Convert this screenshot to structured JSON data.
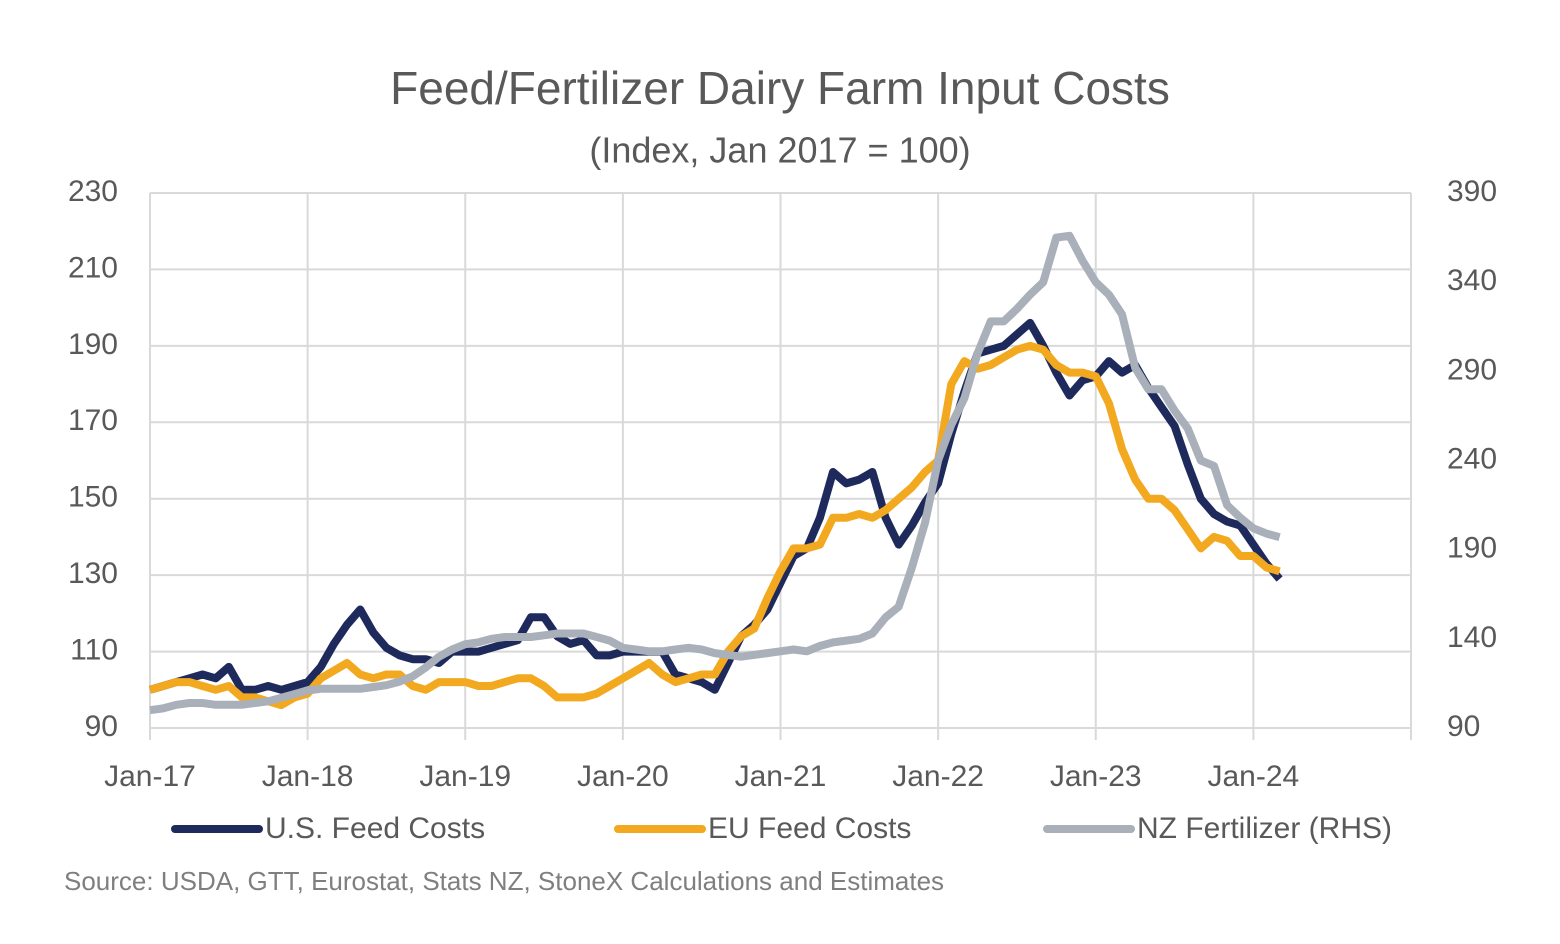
{
  "chart_data": {
    "type": "line",
    "title": "Feed/Fertilizer Dairy Farm Input Costs",
    "subtitle": "(Index, Jan 2017 = 100)",
    "source": "Source: USDA, GTT, Eurostat, Stats NZ, StoneX Calculations and Estimates",
    "categories": [
      "Jan-17",
      null,
      null,
      null,
      null,
      null,
      null,
      null,
      null,
      null,
      null,
      null,
      "Jan-18",
      null,
      null,
      null,
      null,
      null,
      null,
      null,
      null,
      null,
      null,
      null,
      "Jan-19",
      null,
      null,
      null,
      null,
      null,
      null,
      null,
      null,
      null,
      null,
      null,
      "Jan-20",
      null,
      null,
      null,
      null,
      null,
      null,
      null,
      null,
      null,
      null,
      null,
      "Jan-21",
      null,
      null,
      null,
      null,
      null,
      null,
      null,
      null,
      null,
      null,
      null,
      "Jan-22",
      null,
      null,
      null,
      null,
      null,
      null,
      null,
      null,
      null,
      null,
      null,
      "Jan-23",
      null,
      null,
      null,
      null,
      null,
      null,
      null,
      null,
      null,
      null,
      null,
      "Jan-24",
      null,
      null,
      null,
      null,
      null,
      null,
      null,
      null,
      null,
      null,
      null,
      null
    ],
    "ylim": [
      90,
      230
    ],
    "yticks": [
      90,
      110,
      130,
      150,
      170,
      190,
      210,
      230
    ],
    "y2lim": [
      90,
      390
    ],
    "y2ticks": [
      90,
      140,
      190,
      240,
      290,
      340,
      390
    ],
    "grid": true,
    "legend": "bottom",
    "series": [
      {
        "name": "U.S. Feed Costs",
        "color": "#1f2a5c",
        "values": [
          100,
          101,
          102,
          103,
          104,
          103,
          106,
          100,
          100,
          101,
          100,
          101,
          102,
          106,
          112,
          117,
          121,
          115,
          111,
          109,
          108,
          108,
          107,
          110,
          110,
          110,
          111,
          112,
          113,
          119,
          119,
          114,
          112,
          113,
          109,
          109,
          110,
          110,
          110,
          110,
          104,
          103,
          102,
          100,
          107,
          114,
          117,
          121,
          128,
          135,
          137,
          145,
          157,
          154,
          155,
          157,
          145,
          138,
          143,
          149,
          154,
          167,
          178,
          188,
          189,
          190,
          193,
          196,
          190,
          183,
          177,
          181,
          182,
          186,
          183,
          185,
          179,
          174,
          169,
          159,
          150,
          146,
          144,
          143,
          138,
          133,
          129,
          null,
          null,
          null,
          null,
          null,
          null,
          null,
          null,
          null,
          null
        ]
      },
      {
        "name": "EU Feed Costs",
        "color": "#f2a91f",
        "values": [
          100,
          101,
          102,
          102,
          101,
          100,
          101,
          98,
          98,
          97,
          96,
          98,
          99,
          103,
          105,
          107,
          104,
          103,
          104,
          104,
          101,
          100,
          102,
          102,
          102,
          101,
          101,
          102,
          103,
          103,
          101,
          98,
          98,
          98,
          99,
          101,
          103,
          105,
          107,
          104,
          102,
          103,
          104,
          104,
          110,
          114,
          116,
          124,
          131,
          137,
          137,
          138,
          145,
          145,
          146,
          145,
          147,
          150,
          153,
          157,
          160,
          180,
          186,
          184,
          185,
          187,
          189,
          190,
          189,
          185,
          183,
          183,
          182,
          175,
          163,
          155,
          150,
          150,
          147,
          142,
          137,
          140,
          139,
          135,
          135,
          132,
          131,
          null,
          null,
          null,
          null,
          null,
          null,
          null,
          null,
          null,
          null
        ]
      },
      {
        "name": "NZ Fertilizer (RHS)",
        "color": "#a9b0ba",
        "axis": "y2",
        "values": [
          100,
          101,
          103,
          104,
          104,
          103,
          103,
          103,
          104,
          105,
          107,
          109,
          111,
          112,
          112,
          112,
          112,
          113,
          114,
          116,
          119,
          124,
          130,
          134,
          137,
          138,
          140,
          141,
          141,
          141,
          142,
          143,
          143,
          143,
          141,
          139,
          135,
          134,
          133,
          133,
          134,
          135,
          134,
          132,
          131,
          130,
          131,
          132,
          133,
          134,
          133,
          136,
          138,
          139,
          140,
          143,
          152,
          158,
          180,
          205,
          240,
          260,
          275,
          300,
          318,
          318,
          325,
          333,
          340,
          365,
          366,
          352,
          340,
          333,
          322,
          292,
          280,
          280,
          268,
          258,
          240,
          237,
          215,
          208,
          202,
          199,
          197,
          null,
          null,
          null,
          null,
          null,
          null,
          null,
          null,
          null,
          null
        ]
      }
    ]
  }
}
